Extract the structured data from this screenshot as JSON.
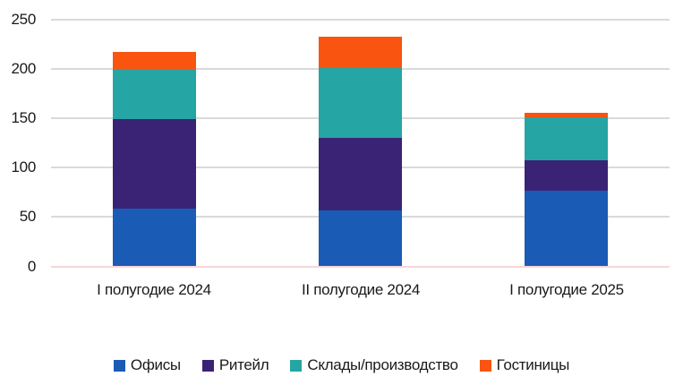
{
  "chart_data": {
    "type": "bar",
    "stacked": true,
    "title": "",
    "xlabel": "",
    "ylabel": "",
    "categories": [
      "I полугодие 2024",
      "II полугодие 2024",
      "I полугодие 2025"
    ],
    "series": [
      {
        "name": "Офисы",
        "color": "#1A5BB5",
        "values": [
          58,
          56,
          76
        ]
      },
      {
        "name": "Ритейл",
        "color": "#3A2375",
        "values": [
          91,
          74,
          31
        ]
      },
      {
        "name": "Склады/производство",
        "color": "#25A5A4",
        "values": [
          51,
          71,
          44
        ]
      },
      {
        "name": "Гостиницы",
        "color": "#F95410",
        "values": [
          17,
          32,
          4
        ]
      }
    ],
    "totals": [
      217,
      233,
      155
    ],
    "ylim": [
      0,
      250
    ],
    "yticks": [
      0,
      50,
      100,
      150,
      200,
      250
    ],
    "grid": true,
    "legend_position": "bottom",
    "colors": {
      "gridline": "#DADADA",
      "baseline": "#F6D7D9",
      "text": "#1A1A1A",
      "background": "#FFFFFF"
    }
  }
}
